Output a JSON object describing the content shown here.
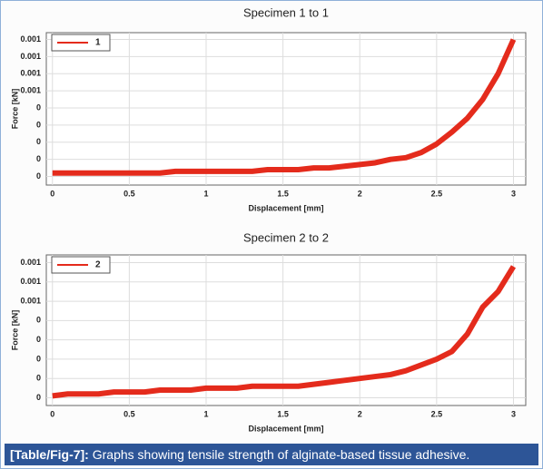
{
  "chart_data": [
    {
      "type": "line",
      "title": "Specimen 1 to 1",
      "xlabel": "Displacement [mm]",
      "ylabel": "Force [kN]",
      "x": [
        0,
        0.1,
        0.2,
        0.3,
        0.4,
        0.5,
        0.6,
        0.7,
        0.8,
        0.9,
        1.0,
        1.1,
        1.2,
        1.3,
        1.4,
        1.5,
        1.6,
        1.7,
        1.8,
        1.9,
        2.0,
        2.1,
        2.2,
        2.3,
        2.4,
        2.5,
        2.6,
        2.7,
        2.8,
        2.9,
        3.0
      ],
      "series": [
        {
          "name": "1",
          "color": "#e42b1c",
          "values": [
            2e-05,
            2e-05,
            2e-05,
            2e-05,
            2e-05,
            2e-05,
            2e-05,
            2e-05,
            3e-05,
            3e-05,
            3e-05,
            3e-05,
            3e-05,
            3e-05,
            4e-05,
            4e-05,
            4e-05,
            5e-05,
            5e-05,
            6e-05,
            7e-05,
            8e-05,
            0.0001,
            0.00011,
            0.00014,
            0.00019,
            0.00026,
            0.00034,
            0.00045,
            0.0006,
            0.0008
          ]
        }
      ],
      "xlim": [
        -0.04,
        3.08
      ],
      "xticks": [
        0,
        0.5,
        1,
        1.5,
        2,
        2.5,
        3
      ],
      "ylim": [
        -5e-05,
        0.00084
      ],
      "yticks": [
        {
          "value": 0,
          "label": "0"
        },
        {
          "value": 0.0001,
          "label": "0"
        },
        {
          "value": 0.0002,
          "label": "0"
        },
        {
          "value": 0.0003,
          "label": "0"
        },
        {
          "value": 0.0004,
          "label": "0"
        },
        {
          "value": 0.0005,
          "label": "0.001"
        },
        {
          "value": 0.0006,
          "label": "0.001"
        },
        {
          "value": 0.0007,
          "label": "0.001"
        },
        {
          "value": 0.0008,
          "label": "0.001"
        }
      ],
      "grid": true,
      "legend": "upper left"
    },
    {
      "type": "line",
      "title": "Specimen 2 to 2",
      "xlabel": "Displacement [mm]",
      "ylabel": "Force [kN]",
      "x": [
        0,
        0.1,
        0.2,
        0.3,
        0.4,
        0.5,
        0.6,
        0.7,
        0.8,
        0.9,
        1.0,
        1.1,
        1.2,
        1.3,
        1.4,
        1.5,
        1.6,
        1.7,
        1.8,
        1.9,
        2.0,
        2.1,
        2.2,
        2.3,
        2.4,
        2.5,
        2.6,
        2.7,
        2.8,
        2.9,
        3.0
      ],
      "series": [
        {
          "name": "2",
          "color": "#e42b1c",
          "values": [
            1e-05,
            2e-05,
            2e-05,
            2e-05,
            3e-05,
            3e-05,
            3e-05,
            4e-05,
            4e-05,
            4e-05,
            5e-05,
            5e-05,
            5e-05,
            6e-05,
            6e-05,
            6e-05,
            6e-05,
            7e-05,
            8e-05,
            9e-05,
            0.0001,
            0.00011,
            0.00012,
            0.00014,
            0.00017,
            0.0002,
            0.00024,
            0.00033,
            0.00047,
            0.00055,
            0.00068
          ]
        }
      ],
      "xlim": [
        -0.04,
        3.08
      ],
      "xticks": [
        0,
        0.5,
        1,
        1.5,
        2,
        2.5,
        3
      ],
      "ylim": [
        -4e-05,
        0.00074
      ],
      "yticks": [
        {
          "value": 0,
          "label": "0"
        },
        {
          "value": 0.0001,
          "label": "0"
        },
        {
          "value": 0.0002,
          "label": "0"
        },
        {
          "value": 0.0003,
          "label": "0"
        },
        {
          "value": 0.0004,
          "label": "0"
        },
        {
          "value": 0.0005,
          "label": "0.001"
        },
        {
          "value": 0.0006,
          "label": "0.001"
        },
        {
          "value": 0.0007,
          "label": "0.001"
        }
      ],
      "grid": true,
      "legend": "upper left"
    }
  ],
  "caption": {
    "label": "[Table/Fig-7]:",
    "text": "Graphs showing tensile strength of alginate-based tissue adhesive."
  }
}
